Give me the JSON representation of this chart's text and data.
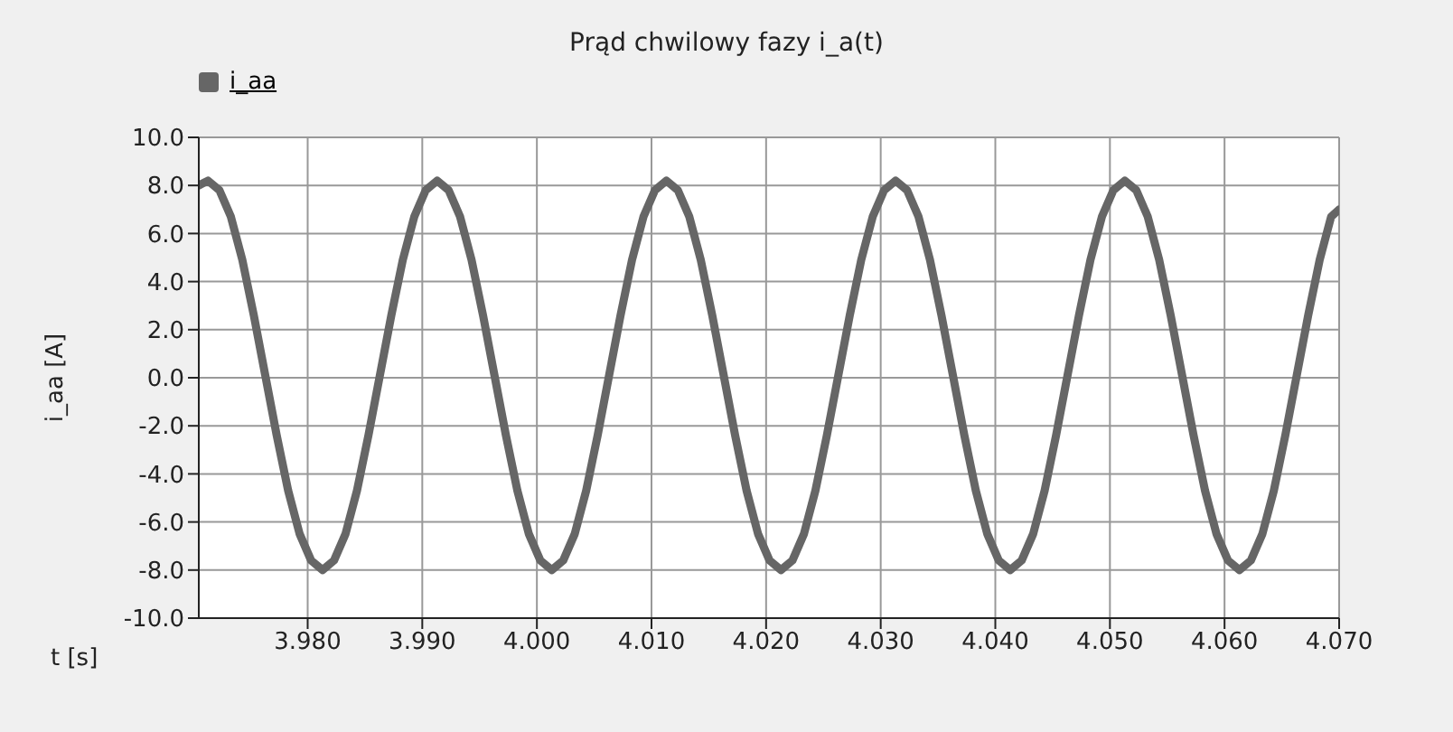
{
  "chart_data": {
    "type": "line",
    "title": "Prąd chwilowy fazy i_a(t)",
    "xlabel": "t [s]",
    "ylabel": "i_aa [A]",
    "xlim": [
      3.9705,
      4.07
    ],
    "xticks": [
      {
        "value": 3.98,
        "label": "3.980"
      },
      {
        "value": 3.99,
        "label": "3.990"
      },
      {
        "value": 4.0,
        "label": "4.000"
      },
      {
        "value": 4.01,
        "label": "4.010"
      },
      {
        "value": 4.02,
        "label": "4.020"
      },
      {
        "value": 4.03,
        "label": "4.030"
      },
      {
        "value": 4.04,
        "label": "4.040"
      },
      {
        "value": 4.05,
        "label": "4.050"
      },
      {
        "value": 4.06,
        "label": "4.060"
      },
      {
        "value": 4.07,
        "label": "4.070"
      }
    ],
    "ylim": [
      -10,
      10
    ],
    "yticks": [
      {
        "value": -10,
        "label": "-10.0"
      },
      {
        "value": -8,
        "label": "-8.0"
      },
      {
        "value": -6,
        "label": "-6.0"
      },
      {
        "value": -4,
        "label": "-4.0"
      },
      {
        "value": -2,
        "label": "-2.0"
      },
      {
        "value": 0,
        "label": "0.0"
      },
      {
        "value": 2,
        "label": "2.0"
      },
      {
        "value": 4,
        "label": "4.0"
      },
      {
        "value": 6,
        "label": "6.0"
      },
      {
        "value": 8,
        "label": "8.0"
      },
      {
        "value": 10,
        "label": "10.0"
      }
    ],
    "grid": true,
    "legend": "top left",
    "marker": "none",
    "line_style": "solid",
    "series": [
      {
        "name": "i_aa",
        "color": "#666666",
        "x": [
          3.9705,
          3.9713,
          3.9723,
          3.9733,
          3.9743,
          3.9753,
          3.9763,
          3.9773,
          3.9783,
          3.9793,
          3.9803,
          3.9813,
          3.9823,
          3.9833,
          3.9843,
          3.9853,
          3.9863,
          3.9873,
          3.9883,
          3.9893,
          3.9903,
          3.9913,
          3.9923,
          3.9933,
          3.9943,
          3.9953,
          3.9963,
          3.9973,
          3.9983,
          3.9993,
          4.0003,
          4.0013,
          4.0023,
          4.0033,
          4.0043,
          4.0053,
          4.0063,
          4.0073,
          4.0083,
          4.0093,
          4.0103,
          4.0113,
          4.0123,
          4.0133,
          4.0143,
          4.0153,
          4.0163,
          4.0173,
          4.0183,
          4.0193,
          4.0203,
          4.0213,
          4.0223,
          4.0233,
          4.0243,
          4.0253,
          4.0263,
          4.0273,
          4.0283,
          4.0293,
          4.0303,
          4.0313,
          4.0323,
          4.0333,
          4.0343,
          4.0353,
          4.0363,
          4.0373,
          4.0383,
          4.0393,
          4.0403,
          4.0413,
          4.0423,
          4.0433,
          4.0443,
          4.0453,
          4.0463,
          4.0473,
          4.0483,
          4.0493,
          4.0503,
          4.0513,
          4.0523,
          4.0533,
          4.0543,
          4.0553,
          4.0563,
          4.0573,
          4.0583,
          4.0593,
          4.0603,
          4.0613,
          4.0623,
          4.0633,
          4.0643,
          4.0653,
          4.0663,
          4.0673,
          4.0683,
          4.0693,
          4.07
        ],
        "values": [
          8.0,
          8.2,
          7.8,
          6.7,
          4.9,
          2.6,
          0.1,
          -2.4,
          -4.7,
          -6.5,
          -7.6,
          -8.0,
          -7.6,
          -6.5,
          -4.7,
          -2.4,
          0.1,
          2.6,
          4.9,
          6.7,
          7.8,
          8.2,
          7.8,
          6.7,
          4.9,
          2.6,
          0.1,
          -2.4,
          -4.7,
          -6.5,
          -7.6,
          -8.0,
          -7.6,
          -6.5,
          -4.7,
          -2.4,
          0.1,
          2.6,
          4.9,
          6.7,
          7.8,
          8.2,
          7.8,
          6.7,
          4.9,
          2.6,
          0.1,
          -2.4,
          -4.7,
          -6.5,
          -7.6,
          -8.0,
          -7.6,
          -6.5,
          -4.7,
          -2.4,
          0.1,
          2.6,
          4.9,
          6.7,
          7.8,
          8.2,
          7.8,
          6.7,
          4.9,
          2.6,
          0.1,
          -2.4,
          -4.7,
          -6.5,
          -7.6,
          -8.0,
          -7.6,
          -6.5,
          -4.7,
          -2.4,
          0.1,
          2.6,
          4.9,
          6.7,
          7.8,
          8.2,
          7.8,
          6.7,
          4.9,
          2.6,
          0.1,
          -2.4,
          -4.7,
          -6.5,
          -7.6,
          -8.0,
          -7.6,
          -6.5,
          -4.7,
          -2.4,
          0.1,
          2.6,
          4.9,
          6.7,
          7.0
        ]
      }
    ]
  }
}
